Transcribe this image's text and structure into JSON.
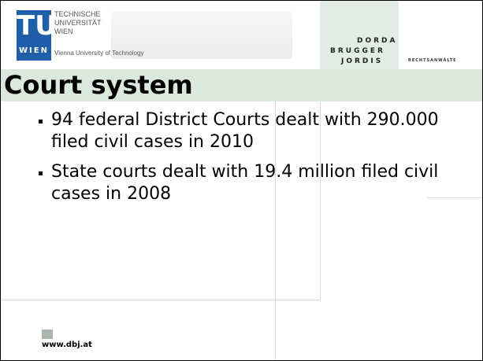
{
  "header": {
    "logo": {
      "mark": "TU",
      "city": "WIEN",
      "lines": [
        "TECHNISCHE",
        "UNIVERSITÄT",
        "WIEN"
      ],
      "subtitle": "Vienna University of Technology"
    },
    "firm": {
      "lines": [
        "DORDA",
        "BRUGGER",
        "JORDIS"
      ],
      "suffix": "RECHTSANWÄLTE"
    }
  },
  "title": "Court system",
  "bullets": [
    "94 federal District Courts dealt with 290.000 filed civil cases in 2010",
    "State courts dealt with 19.4 million filed civil cases in 2008"
  ],
  "footer": {
    "url": "www.dbj.at"
  }
}
